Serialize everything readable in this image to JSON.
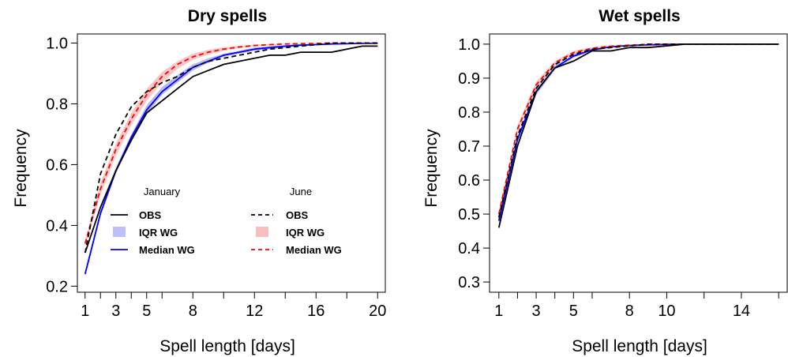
{
  "chart_data": [
    {
      "type": "line",
      "title": "Dry spells",
      "xlabel": "Spell length [days]",
      "ylabel": "Frequency",
      "xlim": [
        0.5,
        20.5
      ],
      "ylim": [
        0.18,
        1.03
      ],
      "xticks": [
        1,
        2,
        3,
        4,
        5,
        6,
        8,
        10,
        12,
        14,
        16,
        18,
        20
      ],
      "xtick_labels": [
        "1",
        "",
        "3",
        "",
        "5",
        "",
        "8",
        "",
        "12",
        "",
        "16",
        "",
        "20"
      ],
      "yticks": [
        0.2,
        0.4,
        0.6,
        0.8,
        1.0
      ],
      "ytick_labels": [
        "0.2",
        "0.4",
        "0.6",
        "0.8",
        "1.0"
      ],
      "legend": {
        "position": "inside-bottom",
        "groups": [
          {
            "heading": "January",
            "entries": [
              "OBS",
              "IQR WG",
              "Median WG"
            ]
          },
          {
            "heading": "June",
            "entries": [
              "OBS",
              "IQR WG",
              "Median WG"
            ]
          }
        ]
      },
      "x": [
        1,
        2,
        3,
        4,
        5,
        6,
        7,
        8,
        9,
        10,
        11,
        12,
        13,
        14,
        15,
        16,
        17,
        18,
        19,
        20
      ],
      "series": [
        {
          "name": "OBS",
          "group": "January",
          "style": "solid",
          "color": "#000000",
          "values": [
            0.31,
            0.46,
            0.58,
            0.68,
            0.77,
            0.81,
            0.85,
            0.89,
            0.91,
            0.93,
            0.94,
            0.95,
            0.96,
            0.96,
            0.97,
            0.97,
            0.97,
            0.98,
            0.99,
            0.99
          ]
        },
        {
          "name": "Median WG",
          "group": "January",
          "style": "solid",
          "color": "#0000ff",
          "values": [
            0.24,
            0.44,
            0.58,
            0.69,
            0.78,
            0.84,
            0.88,
            0.92,
            0.94,
            0.96,
            0.97,
            0.98,
            0.985,
            0.99,
            0.993,
            0.995,
            0.997,
            0.998,
            0.999,
            0.999
          ],
          "iqr_low": [
            0.23,
            0.43,
            0.57,
            0.68,
            0.765,
            0.83,
            0.87,
            0.91,
            0.935,
            0.955,
            0.965,
            0.975,
            0.98,
            0.985,
            0.99,
            0.993,
            0.995,
            0.997,
            0.998,
            0.998
          ],
          "iqr_high": [
            0.25,
            0.45,
            0.59,
            0.7,
            0.795,
            0.855,
            0.895,
            0.93,
            0.95,
            0.965,
            0.975,
            0.985,
            0.99,
            0.993,
            0.996,
            0.997,
            0.998,
            0.999,
            1.0,
            1.0
          ],
          "iqr_color": "#8a8af0"
        },
        {
          "name": "OBS",
          "group": "June",
          "style": "dashed",
          "color": "#000000",
          "values": [
            0.31,
            0.57,
            0.7,
            0.79,
            0.84,
            0.87,
            0.89,
            0.92,
            0.94,
            0.95,
            0.96,
            0.97,
            0.98,
            0.985,
            0.99,
            0.995,
            1.0,
            1.0,
            1.0,
            1.0
          ]
        },
        {
          "name": "Median WG",
          "group": "June",
          "style": "dashed",
          "color": "#ff0000",
          "values": [
            0.34,
            0.52,
            0.65,
            0.75,
            0.83,
            0.89,
            0.93,
            0.955,
            0.97,
            0.98,
            0.987,
            0.992,
            0.995,
            0.997,
            0.998,
            0.999,
            1.0,
            1.0,
            1.0,
            1.0
          ],
          "iqr_low": [
            0.33,
            0.5,
            0.63,
            0.73,
            0.81,
            0.87,
            0.915,
            0.945,
            0.962,
            0.975,
            0.983,
            0.989,
            0.993,
            0.995,
            0.997,
            0.998,
            0.999,
            1.0,
            1.0,
            1.0
          ],
          "iqr_high": [
            0.35,
            0.54,
            0.67,
            0.77,
            0.85,
            0.905,
            0.94,
            0.965,
            0.978,
            0.986,
            0.991,
            0.995,
            0.997,
            0.998,
            0.999,
            1.0,
            1.0,
            1.0,
            1.0,
            1.0
          ],
          "iqr_color": "#f5a3a3"
        }
      ]
    },
    {
      "type": "line",
      "title": "Wet spells",
      "xlabel": "Spell length [days]",
      "ylabel": "Frequency",
      "xlim": [
        0.5,
        16.5
      ],
      "ylim": [
        0.27,
        1.03
      ],
      "xticks": [
        1,
        2,
        3,
        4,
        5,
        6,
        8,
        10,
        12,
        14,
        16
      ],
      "xtick_labels": [
        "1",
        "",
        "3",
        "",
        "5",
        "",
        "8",
        "10",
        "",
        "14",
        ""
      ],
      "yticks": [
        0.3,
        0.4,
        0.5,
        0.6,
        0.7,
        0.8,
        0.9,
        1.0
      ],
      "ytick_labels": [
        "0.3",
        "0.4",
        "0.5",
        "0.6",
        "0.7",
        "0.8",
        "0.9",
        "1.0"
      ],
      "x": [
        1,
        2,
        3,
        4,
        5,
        6,
        7,
        8,
        9,
        10,
        11,
        12,
        13,
        14,
        15,
        16
      ],
      "series": [
        {
          "name": "OBS",
          "group": "January",
          "style": "solid",
          "color": "#000000",
          "values": [
            0.46,
            0.7,
            0.86,
            0.93,
            0.95,
            0.98,
            0.98,
            0.99,
            0.99,
            0.995,
            1.0,
            1.0,
            1.0,
            1.0,
            1.0,
            1.0
          ]
        },
        {
          "name": "Median WG",
          "group": "January",
          "style": "solid",
          "color": "#0000ff",
          "values": [
            0.48,
            0.72,
            0.86,
            0.93,
            0.965,
            0.983,
            0.992,
            0.996,
            0.998,
            0.999,
            1.0,
            1.0,
            1.0,
            1.0,
            1.0,
            1.0
          ],
          "iqr_low": [
            0.47,
            0.71,
            0.85,
            0.925,
            0.96,
            0.98,
            0.99,
            0.995,
            0.997,
            0.998,
            0.999,
            1.0,
            1.0,
            1.0,
            1.0,
            1.0
          ],
          "iqr_high": [
            0.49,
            0.73,
            0.87,
            0.937,
            0.97,
            0.986,
            0.994,
            0.997,
            0.999,
            1.0,
            1.0,
            1.0,
            1.0,
            1.0,
            1.0,
            1.0
          ],
          "iqr_color": "#8a8af0"
        },
        {
          "name": "OBS",
          "group": "June",
          "style": "dashed",
          "color": "#000000",
          "values": [
            0.49,
            0.73,
            0.87,
            0.94,
            0.97,
            0.985,
            0.99,
            0.995,
            1.0,
            1.0,
            1.0,
            1.0,
            1.0,
            1.0,
            1.0,
            1.0
          ]
        },
        {
          "name": "Median WG",
          "group": "June",
          "style": "dashed",
          "color": "#ff0000",
          "values": [
            0.5,
            0.75,
            0.88,
            0.945,
            0.975,
            0.988,
            0.994,
            0.997,
            0.999,
            1.0,
            1.0,
            1.0,
            1.0,
            1.0,
            1.0,
            1.0
          ],
          "iqr_low": [
            0.49,
            0.74,
            0.87,
            0.94,
            0.97,
            0.985,
            0.992,
            0.996,
            0.998,
            0.999,
            1.0,
            1.0,
            1.0,
            1.0,
            1.0,
            1.0
          ],
          "iqr_high": [
            0.51,
            0.76,
            0.89,
            0.95,
            0.98,
            0.991,
            0.996,
            0.998,
            1.0,
            1.0,
            1.0,
            1.0,
            1.0,
            1.0,
            1.0,
            1.0
          ],
          "iqr_color": "#f5a3a3"
        }
      ]
    }
  ]
}
